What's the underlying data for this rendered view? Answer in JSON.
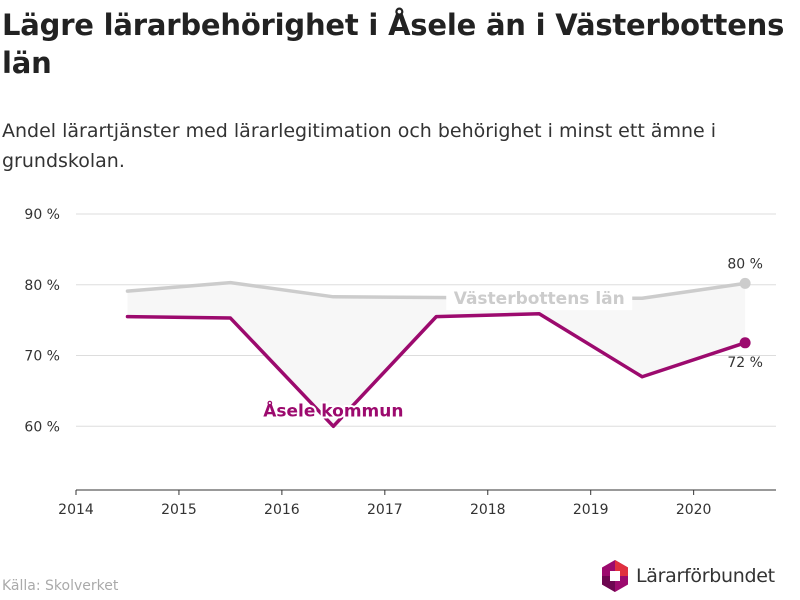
{
  "header": {
    "title": "Lägre lärarbehörighet i Åsele än i Västerbottens län",
    "subtitle": "Andel lärartjänster med lärarlegitimation och behörighet i minst ett ämne i grundskolan."
  },
  "footer": {
    "source": "Källa: Skolverket",
    "brand": "Lärarförbundet"
  },
  "chart_data": {
    "type": "line",
    "x_ticks": [
      "2014",
      "2015",
      "2016",
      "2017",
      "2018",
      "2019",
      "2020"
    ],
    "y_ticks": [
      "60 %",
      "70 %",
      "80 %",
      "90 %"
    ],
    "y_tick_values": [
      60,
      70,
      80,
      90
    ],
    "xlim": [
      2014,
      2020.8
    ],
    "ylim": [
      51,
      90
    ],
    "grid": true,
    "area_between_series": true,
    "series": [
      {
        "name": "Västerbottens län",
        "color": "#cccccc",
        "x": [
          2014.5,
          2015.5,
          2016.5,
          2017.5,
          2018.5,
          2019.5,
          2020.5
        ],
        "values": [
          79.1,
          80.3,
          78.3,
          78.2,
          78.1,
          78.1,
          80.2
        ],
        "end_label": "80 %"
      },
      {
        "name": "Åsele kommun",
        "color": "#9c0a6e",
        "x": [
          2014.5,
          2015.5,
          2016.5,
          2017.5,
          2018.5,
          2019.5,
          2020.5
        ],
        "values": [
          75.5,
          75.3,
          60.0,
          75.5,
          75.9,
          67.0,
          71.8
        ],
        "end_label": "72 %"
      }
    ]
  },
  "colors": {
    "brand_magenta": "#9c0a6e",
    "brand_red": "#e0303f",
    "area_fill": "#f7f7f7",
    "grid": "#dddddd"
  }
}
